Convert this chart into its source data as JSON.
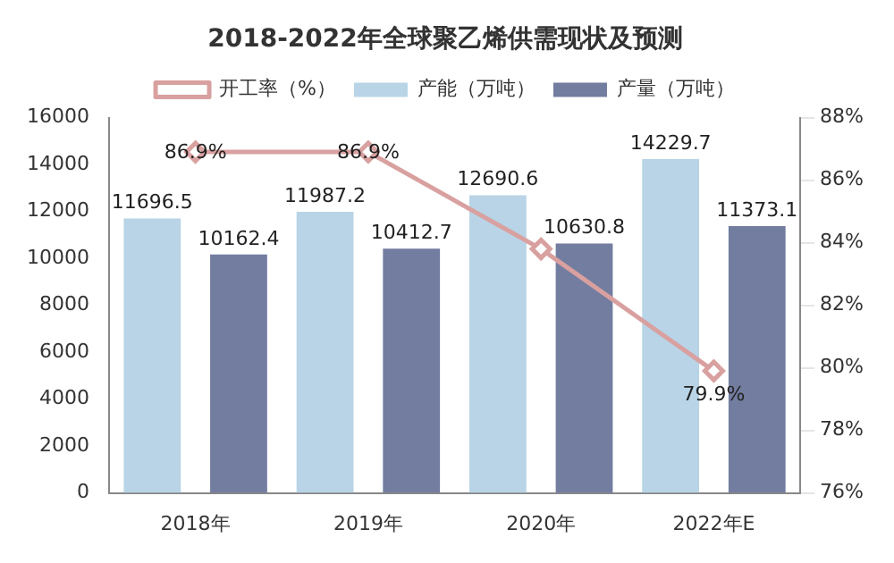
{
  "chart_data": {
    "type": "bar",
    "title": "2018-2022年全球聚乙烯供需现状及预测",
    "categories": [
      "2018年",
      "2019年",
      "2020年",
      "2022年E"
    ],
    "series": [
      {
        "name": "产能（万吨）",
        "color": "#b8d4e6",
        "values": [
          11696.5,
          11987.2,
          12690.6,
          14229.7
        ],
        "value_labels": [
          "11696.5",
          "11987.2",
          "12690.6",
          "14229.7"
        ]
      },
      {
        "name": "产量（万吨）",
        "color": "#737da0",
        "values": [
          10162.4,
          10412.7,
          10630.8,
          11373.1
        ],
        "value_labels": [
          "10162.4",
          "10412.7",
          "10630.8",
          "11373.1"
        ]
      },
      {
        "name": "开工率（%）",
        "type": "line",
        "axis": "y2",
        "color": "#d9a0a0",
        "marker": "diamond",
        "values": [
          86.9,
          86.9,
          83.8,
          79.9
        ],
        "value_labels": [
          "86.9%",
          "86.9%",
          null,
          "79.9%"
        ]
      }
    ],
    "ylim": [
      0,
      16000
    ],
    "yticks": [
      0,
      2000,
      4000,
      6000,
      8000,
      10000,
      12000,
      14000,
      16000
    ],
    "y2lim": [
      76,
      88
    ],
    "y2ticks": [
      {
        "value": 76,
        "label": "76%"
      },
      {
        "value": 78,
        "label": "78%"
      },
      {
        "value": 80,
        "label": "80%"
      },
      {
        "value": 82,
        "label": "82%"
      },
      {
        "value": 84,
        "label": "84%"
      },
      {
        "value": 86,
        "label": "86%"
      },
      {
        "value": 88,
        "label": "88%"
      }
    ],
    "legend": "top",
    "grid": false
  }
}
